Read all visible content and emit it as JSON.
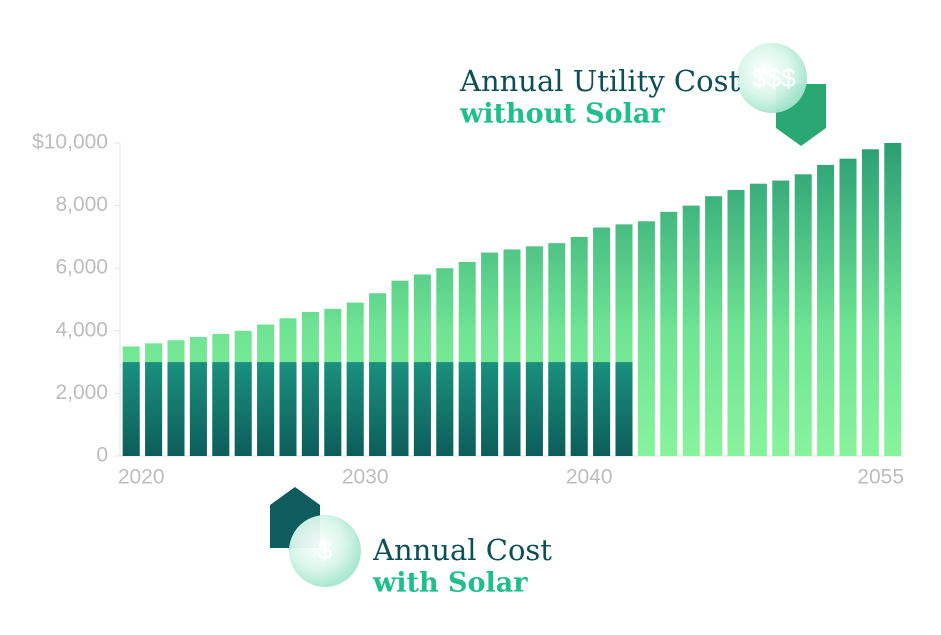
{
  "chart_data": {
    "type": "bar",
    "categories": [
      "2020",
      null,
      null,
      null,
      null,
      null,
      null,
      null,
      null,
      null,
      "2030",
      null,
      null,
      null,
      null,
      null,
      null,
      null,
      null,
      null,
      "2040",
      null,
      null,
      null,
      null,
      null,
      null,
      null,
      null,
      null,
      null,
      null,
      null,
      null,
      "2055"
    ],
    "series": [
      {
        "name": "Annual Utility Cost without Solar",
        "color": "#4fd08a",
        "values": [
          3500,
          3600,
          3700,
          3800,
          3900,
          4000,
          4200,
          4400,
          4600,
          4700,
          4900,
          5200,
          5600,
          5800,
          6000,
          6200,
          6500,
          6600,
          6700,
          6800,
          7000,
          7300,
          7400,
          7500,
          7800,
          8000,
          8300,
          8500,
          8700,
          8800,
          9000,
          9300,
          9500,
          9800,
          10000
        ]
      },
      {
        "name": "Annual Cost with Solar",
        "color": "#137369",
        "values": [
          3000,
          3000,
          3000,
          3000,
          3000,
          3000,
          3000,
          3000,
          3000,
          3000,
          3000,
          3000,
          3000,
          3000,
          3000,
          3000,
          3000,
          3000,
          3000,
          3000,
          3000,
          3000,
          3000,
          null,
          null,
          null,
          null,
          null,
          null,
          null,
          null,
          null,
          null,
          null,
          null
        ]
      }
    ],
    "ylim": [
      0,
      10000
    ],
    "yticks": [
      0,
      {
        "value": 2000,
        "label": "2,000"
      },
      {
        "value": 4000,
        "label": "4,000"
      },
      {
        "value": 6000,
        "label": "6,000"
      },
      {
        "value": 8000,
        "label": "8,000"
      },
      {
        "value": 10000,
        "label": "$10,000"
      }
    ],
    "annotations": {
      "top": {
        "line1": "Annual Utility Cost",
        "line2": "without Solar",
        "icon": "$$$"
      },
      "bottom": {
        "line1": "Annual Cost",
        "line2": "with Solar",
        "icon": "$"
      }
    }
  }
}
